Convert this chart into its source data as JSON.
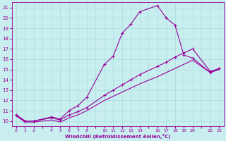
{
  "xlabel": "Windchill (Refroidissement éolien,°C)",
  "background_color": "#c8eef0",
  "line_color": "#990099",
  "grid_color": "#aadddd",
  "xlim": [
    -0.5,
    23.5
  ],
  "ylim": [
    9.5,
    21.5
  ],
  "xtick_labels": [
    "0",
    "1",
    "2",
    "",
    "4",
    "5",
    "6",
    "7",
    "8",
    "",
    "10",
    "11",
    "12",
    "13",
    "14",
    "",
    "16",
    "17",
    "18",
    "19",
    "20",
    "",
    "22",
    "23"
  ],
  "xtick_positions": [
    0,
    1,
    2,
    3,
    4,
    5,
    6,
    7,
    8,
    9,
    10,
    11,
    12,
    13,
    14,
    15,
    16,
    17,
    18,
    19,
    20,
    21,
    22,
    23
  ],
  "yticks": [
    10,
    11,
    12,
    13,
    14,
    15,
    16,
    17,
    18,
    19,
    20,
    21
  ],
  "curve1_x": [
    0,
    1,
    2,
    4,
    5,
    6,
    7,
    8,
    10,
    11,
    12,
    13,
    14,
    16,
    17,
    18,
    19,
    20,
    22,
    23
  ],
  "curve1_y": [
    10.6,
    10.0,
    10.0,
    10.4,
    10.2,
    11.0,
    11.5,
    12.3,
    15.5,
    16.3,
    18.5,
    19.4,
    20.6,
    21.2,
    20.0,
    19.3,
    16.4,
    16.1,
    14.7,
    15.1
  ],
  "curve2_x": [
    0,
    1,
    2,
    4,
    5,
    6,
    7,
    8,
    10,
    11,
    12,
    13,
    14,
    16,
    17,
    18,
    19,
    20,
    22,
    23
  ],
  "curve2_y": [
    10.6,
    10.0,
    10.0,
    10.3,
    10.1,
    10.6,
    10.9,
    11.3,
    12.5,
    13.0,
    13.5,
    14.0,
    14.5,
    15.3,
    15.7,
    16.2,
    16.6,
    17.0,
    14.8,
    15.1
  ],
  "curve3_x": [
    0,
    1,
    2,
    4,
    5,
    6,
    7,
    8,
    10,
    11,
    12,
    13,
    14,
    16,
    17,
    18,
    19,
    20,
    22,
    23
  ],
  "curve3_y": [
    10.5,
    9.9,
    9.9,
    10.1,
    9.9,
    10.3,
    10.6,
    11.0,
    12.0,
    12.4,
    12.8,
    13.2,
    13.6,
    14.3,
    14.7,
    15.1,
    15.5,
    15.9,
    14.7,
    15.0
  ]
}
